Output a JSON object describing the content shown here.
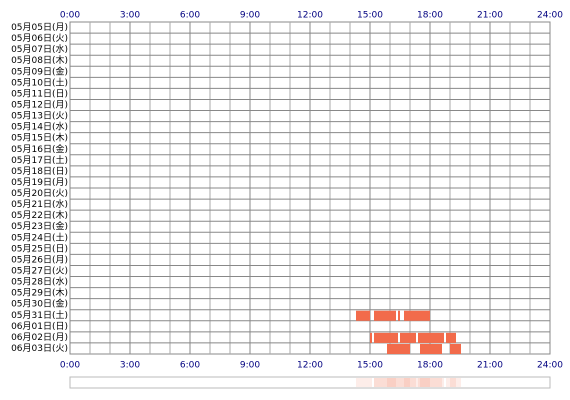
{
  "chart_data": {
    "type": "timeline",
    "categories": [
      "05月05日(月)",
      "05月06日(火)",
      "05月07日(水)",
      "05月08日(木)",
      "05月09日(金)",
      "05月10日(土)",
      "05月11日(日)",
      "05月12日(月)",
      "05月13日(火)",
      "05月14日(水)",
      "05月15日(木)",
      "05月16日(金)",
      "05月17日(土)",
      "05月18日(日)",
      "05月19日(月)",
      "05月20日(火)",
      "05月21日(水)",
      "05月22日(木)",
      "05月23日(金)",
      "05月24日(土)",
      "05月25日(日)",
      "05月26日(月)",
      "05月27日(火)",
      "05月28日(水)",
      "05月29日(木)",
      "05月30日(金)",
      "05月31日(土)",
      "06月01日(日)",
      "06月02日(月)",
      "06月03日(火)"
    ],
    "segments": [
      [],
      [],
      [],
      [],
      [],
      [],
      [],
      [],
      [],
      [],
      [],
      [],
      [],
      [],
      [],
      [],
      [],
      [],
      [],
      [],
      [],
      [],
      [],
      [],
      [],
      [],
      [
        [
          14.3,
          15.0
        ],
        [
          15.2,
          16.3
        ],
        [
          16.4,
          16.5
        ],
        [
          16.7,
          18.0
        ]
      ],
      [],
      [
        [
          15.0,
          15.1
        ],
        [
          15.2,
          16.4
        ],
        [
          16.5,
          17.3
        ],
        [
          17.4,
          18.7
        ],
        [
          18.8,
          19.3
        ]
      ],
      [
        [
          15.85,
          17.0
        ],
        [
          17.5,
          18.6
        ],
        [
          19.0,
          19.55
        ]
      ]
    ],
    "color": "#f26b4b",
    "xlim": [
      0,
      24
    ],
    "xticks": [
      {
        "value": 0,
        "label": "0:00"
      },
      {
        "value": 3,
        "label": "3:00"
      },
      {
        "value": 6,
        "label": "6:00"
      },
      {
        "value": 9,
        "label": "9:00"
      },
      {
        "value": 12,
        "label": "12:00"
      },
      {
        "value": 15,
        "label": "15:00"
      },
      {
        "value": 18,
        "label": "18:00"
      },
      {
        "value": 21,
        "label": "21:00"
      },
      {
        "value": 24,
        "label": "24:00"
      }
    ],
    "grid": true
  }
}
